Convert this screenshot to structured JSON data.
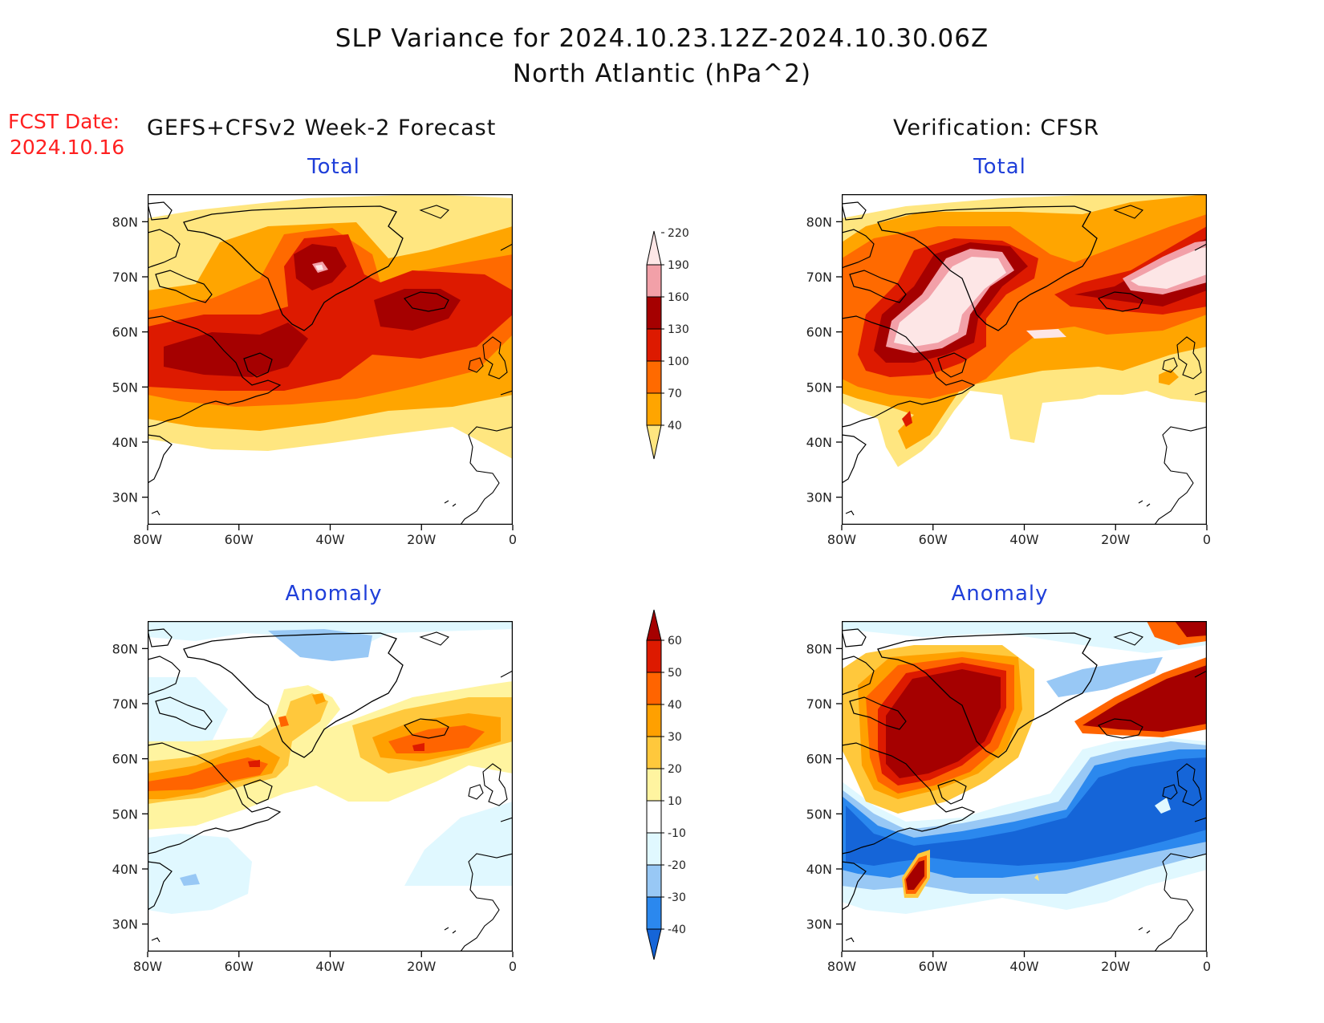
{
  "header": {
    "title_line1": "SLP Variance for 2024.10.23.12Z-2024.10.30.06Z",
    "title_line2": "North Atlantic (hPa^2)"
  },
  "fcst": {
    "line1": "FCST Date:",
    "line2": "2024.10.16"
  },
  "columns": {
    "left_title": "GEFS+CFSv2 Week-2 Forecast",
    "right_title": "Verification: CFSR"
  },
  "panels": {
    "fcst_total": "Total",
    "fcst_anomaly": "Anomaly",
    "verif_total": "Total",
    "verif_anomaly": "Anomaly"
  },
  "axes": {
    "lat_labels": [
      "80N",
      "70N",
      "60N",
      "50N",
      "40N",
      "30N"
    ],
    "lon_labels": [
      "80W",
      "60W",
      "40W",
      "20W",
      "0"
    ]
  },
  "colorbars": {
    "total": {
      "levels": [
        "40",
        "70",
        "100",
        "130",
        "160",
        "190",
        "220"
      ],
      "colors": [
        "#ffe680",
        "#ffa500",
        "#ff6a00",
        "#dd1a00",
        "#a50000",
        "#f2a0a8",
        "#fde6e6"
      ]
    },
    "anomaly": {
      "levels": [
        "-40",
        "-30",
        "-20",
        "-10",
        "10",
        "20",
        "30",
        "40",
        "50",
        "60"
      ],
      "colors": [
        "#1565d8",
        "#2b88ee",
        "#98c8f5",
        "#e0f8ff",
        "#ffffff",
        "#fff4a0",
        "#ffc83c",
        "#ffa000",
        "#ff6400",
        "#dd1a00",
        "#a50000"
      ]
    }
  },
  "colors": {
    "land_outline": "#000000",
    "label_blue": "#1f3fd9",
    "fcst_red": "#ff2020"
  }
}
